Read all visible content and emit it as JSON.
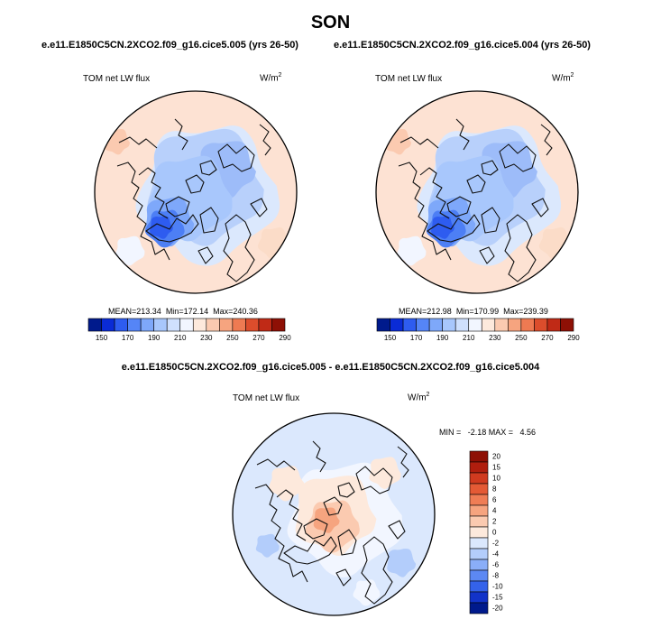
{
  "title": "SON",
  "panels": [
    {
      "case": "e.e11.E1850C5CN.2XCO2.f09_g16.cice5.005 (yrs 26-50)",
      "variable": "TOM net LW flux",
      "units": "W/m",
      "units_sup": "2",
      "stats": {
        "mean_label": "MEAN=",
        "mean": "213.34",
        "min_label": "Min=",
        "min": "172.14",
        "max_label": "Max=",
        "max": "240.36"
      }
    },
    {
      "case": "e.e11.E1850C5CN.2XCO2.f09_g16.cice5.004 (yrs 26-50)",
      "variable": "TOM net LW flux",
      "units": "W/m",
      "units_sup": "2",
      "stats": {
        "mean_label": "MEAN=",
        "mean": "212.98",
        "min_label": "Min=",
        "min": "170.99",
        "max_label": "Max=",
        "max": "239.39"
      }
    }
  ],
  "diff_panel": {
    "title": "e.e11.E1850C5CN.2XCO2.f09_g16.cice5.005 - e.e11.E1850C5CN.2XCO2.f09_g16.cice5.004",
    "variable": "TOM net LW flux",
    "units": "W/m",
    "units_sup": "2",
    "stats_text": "MIN =   -2.18 MAX =   4.56"
  },
  "chart_data": [
    {
      "type": "heatmap",
      "projection": "polar stereographic, North Pole",
      "colorbar": {
        "orientation": "horizontal",
        "ticks": [
          "150",
          "170",
          "190",
          "210",
          "230",
          "250",
          "270",
          "290"
        ],
        "colors": [
          "#001a8c",
          "#0a2bd6",
          "#2e5cf0",
          "#5585f7",
          "#7ea8fa",
          "#a8c7fc",
          "#cfe0fd",
          "#f2f6ff",
          "#fde9dc",
          "#fbcab0",
          "#f6a47f",
          "#ee7a52",
          "#dc4d2c",
          "#c02a16",
          "#8e1005"
        ]
      }
    },
    {
      "type": "heatmap",
      "projection": "polar stereographic, North Pole",
      "colorbar": {
        "orientation": "horizontal",
        "ticks": [
          "150",
          "170",
          "190",
          "210",
          "230",
          "250",
          "270",
          "290"
        ],
        "colors": [
          "#001a8c",
          "#0a2bd6",
          "#2e5cf0",
          "#5585f7",
          "#7ea8fa",
          "#a8c7fc",
          "#cfe0fd",
          "#f2f6ff",
          "#fde9dc",
          "#fbcab0",
          "#f6a47f",
          "#ee7a52",
          "#dc4d2c",
          "#c02a16",
          "#8e1005"
        ]
      }
    },
    {
      "type": "heatmap",
      "projection": "polar stereographic, North Pole",
      "colorbar": {
        "orientation": "vertical",
        "ticks": [
          "20",
          "15",
          "10",
          "8",
          "6",
          "4",
          "2",
          "0",
          "-2",
          "-4",
          "-6",
          "-8",
          "-10",
          "-15",
          "-20"
        ],
        "colors": [
          "#8e1005",
          "#b01e0e",
          "#d03a1f",
          "#e45a35",
          "#ef7d55",
          "#f6a47f",
          "#fbcab0",
          "#fde9dc",
          "#dbe8fd",
          "#b3cdfb",
          "#8aaef8",
          "#5c88f3",
          "#3462ea",
          "#1233c9",
          "#001a8c"
        ]
      }
    }
  ]
}
